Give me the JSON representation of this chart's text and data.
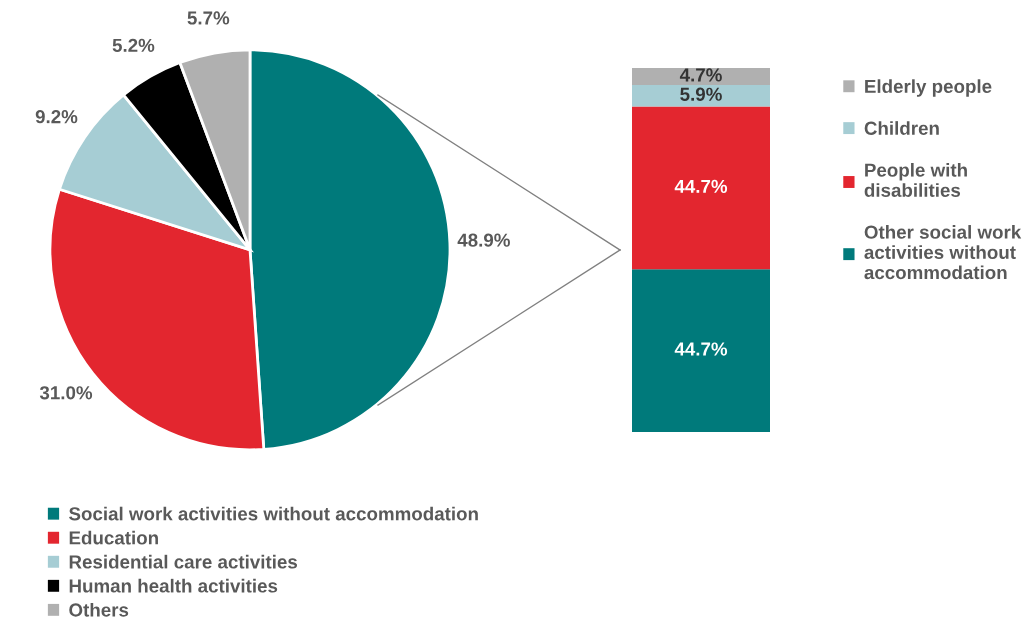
{
  "chart_data": [
    {
      "type": "pie",
      "categories": [
        "Social work activities without accommodation",
        "Education",
        "Residential care activities",
        "Human health activities",
        "Others"
      ],
      "values": [
        48.9,
        31.0,
        9.2,
        5.2,
        5.7
      ],
      "colors": [
        "#007a7b",
        "#e3262f",
        "#a6cdd4",
        "#000000",
        "#b0b0b0"
      ],
      "value_labels": [
        "48.9%",
        "31.0%",
        "9.2%",
        "5.2%",
        "5.7%"
      ],
      "legend": "bottom"
    },
    {
      "type": "bar",
      "stacked": true,
      "categories": [
        null
      ],
      "series": [
        {
          "name": "Other social work activities without accommodation",
          "color": "#007a7b",
          "values": [
            44.7
          ],
          "value_labels": [
            "44.7%"
          ]
        },
        {
          "name": "People with disabilities",
          "color": "#e3262f",
          "values": [
            44.7
          ],
          "value_labels": [
            "44.7%"
          ]
        },
        {
          "name": "Children",
          "color": "#a6cdd4",
          "values": [
            5.9
          ],
          "value_labels": [
            "5.9%"
          ]
        },
        {
          "name": "Elderly people",
          "color": "#b0b0b0",
          "values": [
            4.7
          ],
          "value_labels": [
            "4.7%"
          ]
        }
      ],
      "legend": "right",
      "tick_labels": false
    }
  ]
}
